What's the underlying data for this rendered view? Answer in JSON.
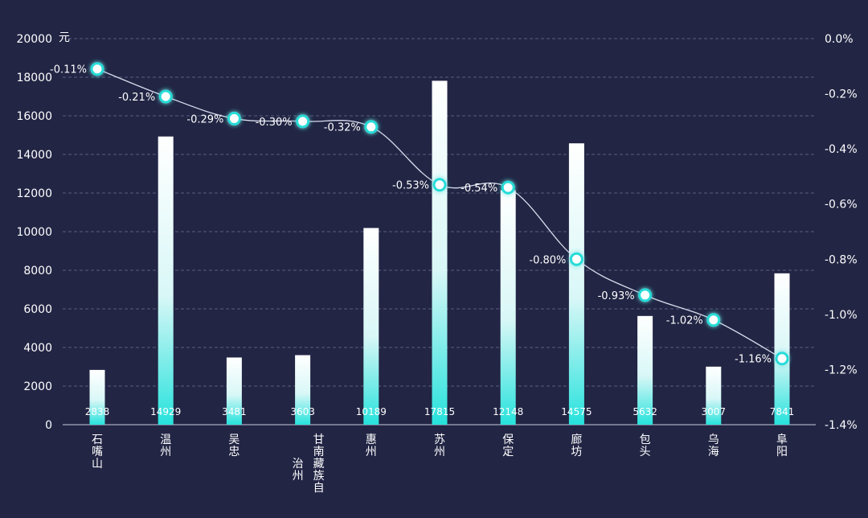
{
  "chart_data": {
    "type": "bar",
    "categories": [
      "石嘴山",
      "温州",
      "吴忠",
      "甘南藏族自治州",
      "惠州",
      "苏州",
      "保定",
      "廊坊",
      "包头",
      "乌海",
      "阜阳"
    ],
    "series": [
      {
        "type": "bar",
        "values": [
          2838,
          14929,
          3481,
          3603,
          10189,
          17815,
          12148,
          14575,
          5632,
          3007,
          7841
        ]
      },
      {
        "type": "line",
        "values": [
          -0.11,
          -0.21,
          -0.29,
          -0.3,
          -0.32,
          -0.53,
          -0.54,
          -0.8,
          -0.93,
          -1.02,
          -1.16
        ]
      }
    ],
    "bar_labels": [
      "2838",
      "14929",
      "3481",
      "3603",
      "10189",
      "17815",
      "12148",
      "14575",
      "5632",
      "3007",
      "7841"
    ],
    "line_labels": [
      "-0.11%",
      "-0.21%",
      "-0.29%",
      "-0.30%",
      "-0.32%",
      "-0.53%",
      "-0.54%",
      "-0.80%",
      "-0.93%",
      "-1.02%",
      "-1.16%"
    ],
    "y_left": {
      "unit": "元",
      "range": [
        0,
        20000
      ],
      "ticks": [
        "0",
        "2000",
        "4000",
        "6000",
        "8000",
        "10000",
        "12000",
        "14000",
        "16000",
        "18000",
        "20000"
      ]
    },
    "y_right": {
      "range": [
        -1.4,
        0
      ],
      "ticks": [
        "0.0%",
        "-0.2%",
        "-0.4%",
        "-0.6%",
        "-0.8%",
        "-1.0%",
        "-1.2%",
        "-1.4%"
      ]
    },
    "grid": true,
    "colors": {
      "background": "#222544",
      "bar_top": "#ffffff",
      "bar_bottom": "#2ee4e0",
      "line": "#d8dcec",
      "marker_fill": "#ffffff",
      "marker_stroke": "#27dcd8",
      "grid": "#5a5e80"
    }
  }
}
